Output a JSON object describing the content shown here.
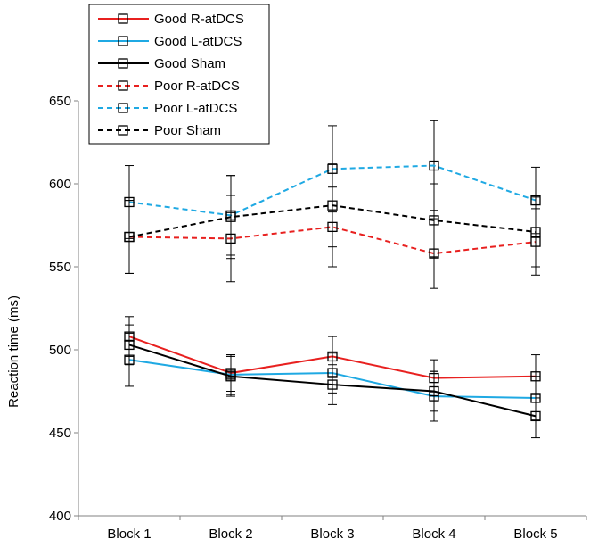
{
  "chart_data": {
    "type": "line",
    "title": "",
    "xlabel": "",
    "ylabel": "Reaction time (ms)",
    "categories": [
      "Block 1",
      "Block 2",
      "Block 3",
      "Block 4",
      "Block 5"
    ],
    "ylim": [
      400,
      650
    ],
    "yticks": [
      400,
      450,
      500,
      550,
      600,
      650
    ],
    "grid": false,
    "legend_position": "top-left",
    "marker": "open-square",
    "series": [
      {
        "name": "Good R-atDCS",
        "color": "#e8201f",
        "dash": "solid",
        "values": [
          508,
          486,
          496,
          483,
          484
        ],
        "error": [
          12,
          11,
          12,
          11,
          13
        ]
      },
      {
        "name": "Good L-atDCS",
        "color": "#1fa9e3",
        "dash": "solid",
        "values": [
          494,
          485,
          486,
          472,
          471
        ],
        "error": [
          16,
          12,
          12,
          15,
          13
        ]
      },
      {
        "name": "Good Sham",
        "color": "#000000",
        "dash": "solid",
        "values": [
          503,
          484,
          479,
          475,
          460
        ],
        "error": [
          12,
          12,
          12,
          12,
          13
        ]
      },
      {
        "name": "Poor R-atDCS",
        "color": "#e8201f",
        "dash": "dashed",
        "values": [
          568,
          567,
          574,
          558,
          565
        ],
        "error": [
          22,
          26,
          24,
          21,
          20
        ]
      },
      {
        "name": "Poor L-atDCS",
        "color": "#1fa9e3",
        "dash": "dashed",
        "values": [
          589,
          581,
          609,
          611,
          590
        ],
        "error": [
          22,
          24,
          26,
          27,
          20
        ]
      },
      {
        "name": "Poor Sham",
        "color": "#000000",
        "dash": "dashed",
        "values": [
          568,
          580,
          587,
          578,
          571
        ],
        "error": [
          22,
          25,
          25,
          22,
          21
        ]
      }
    ]
  }
}
